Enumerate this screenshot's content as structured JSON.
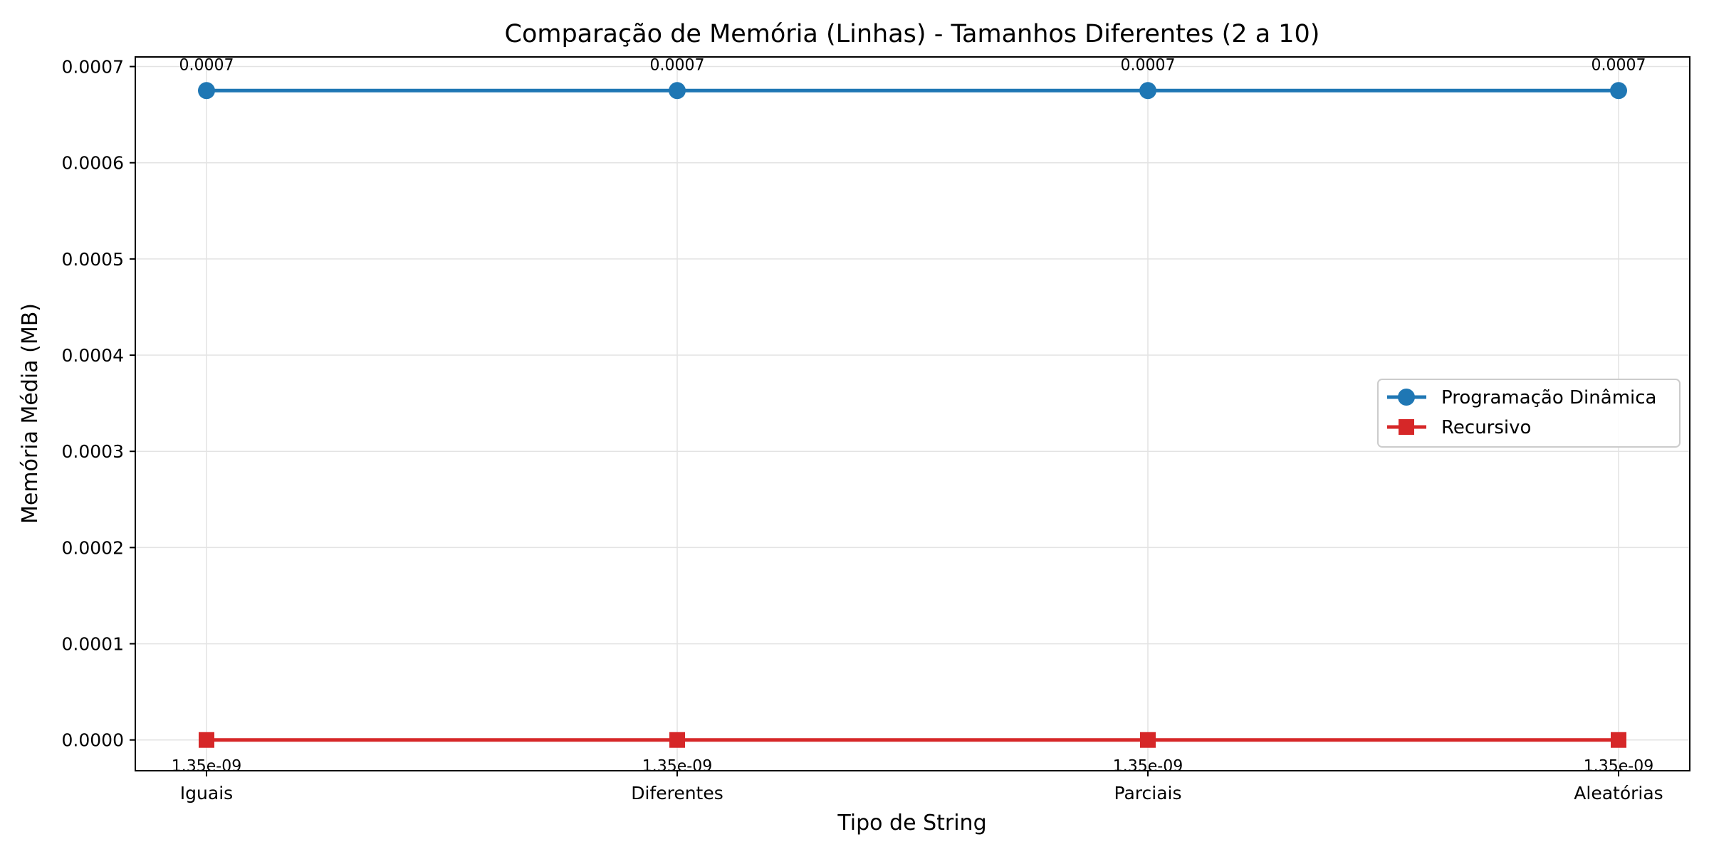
{
  "chart_data": {
    "type": "line",
    "title": "Comparação de Memória (Linhas) - Tamanhos Diferentes (2 a 10)",
    "xlabel": "Tipo de String",
    "ylabel": "Memória Média (MB)",
    "categories": [
      "Iguais",
      "Diferentes",
      "Parciais",
      "Aleatórias"
    ],
    "ylim": [
      -3.2e-05,
      0.00071
    ],
    "yticks": [
      0.0,
      0.0001,
      0.0002,
      0.0003,
      0.0004,
      0.0005,
      0.0006,
      0.0007
    ],
    "ytick_labels": [
      "0.0000",
      "0.0001",
      "0.0002",
      "0.0003",
      "0.0004",
      "0.0005",
      "0.0006",
      "0.0007"
    ],
    "grid": true,
    "legend_position": "center-right",
    "series": [
      {
        "name": "Programação Dinâmica",
        "values": [
          0.000675,
          0.000675,
          0.000675,
          0.000675
        ],
        "labels": [
          "0.0007",
          "0.0007",
          "0.0007",
          "0.0007"
        ],
        "label_position": "above",
        "color": "#1f77b4",
        "marker": "circle"
      },
      {
        "name": "Recursivo",
        "values": [
          1.35e-09,
          1.35e-09,
          1.35e-09,
          1.35e-09
        ],
        "labels": [
          "1.35e-09",
          "1.35e-09",
          "1.35e-09",
          "1.35e-09"
        ],
        "label_position": "below",
        "color": "#d62728",
        "marker": "square"
      }
    ]
  }
}
